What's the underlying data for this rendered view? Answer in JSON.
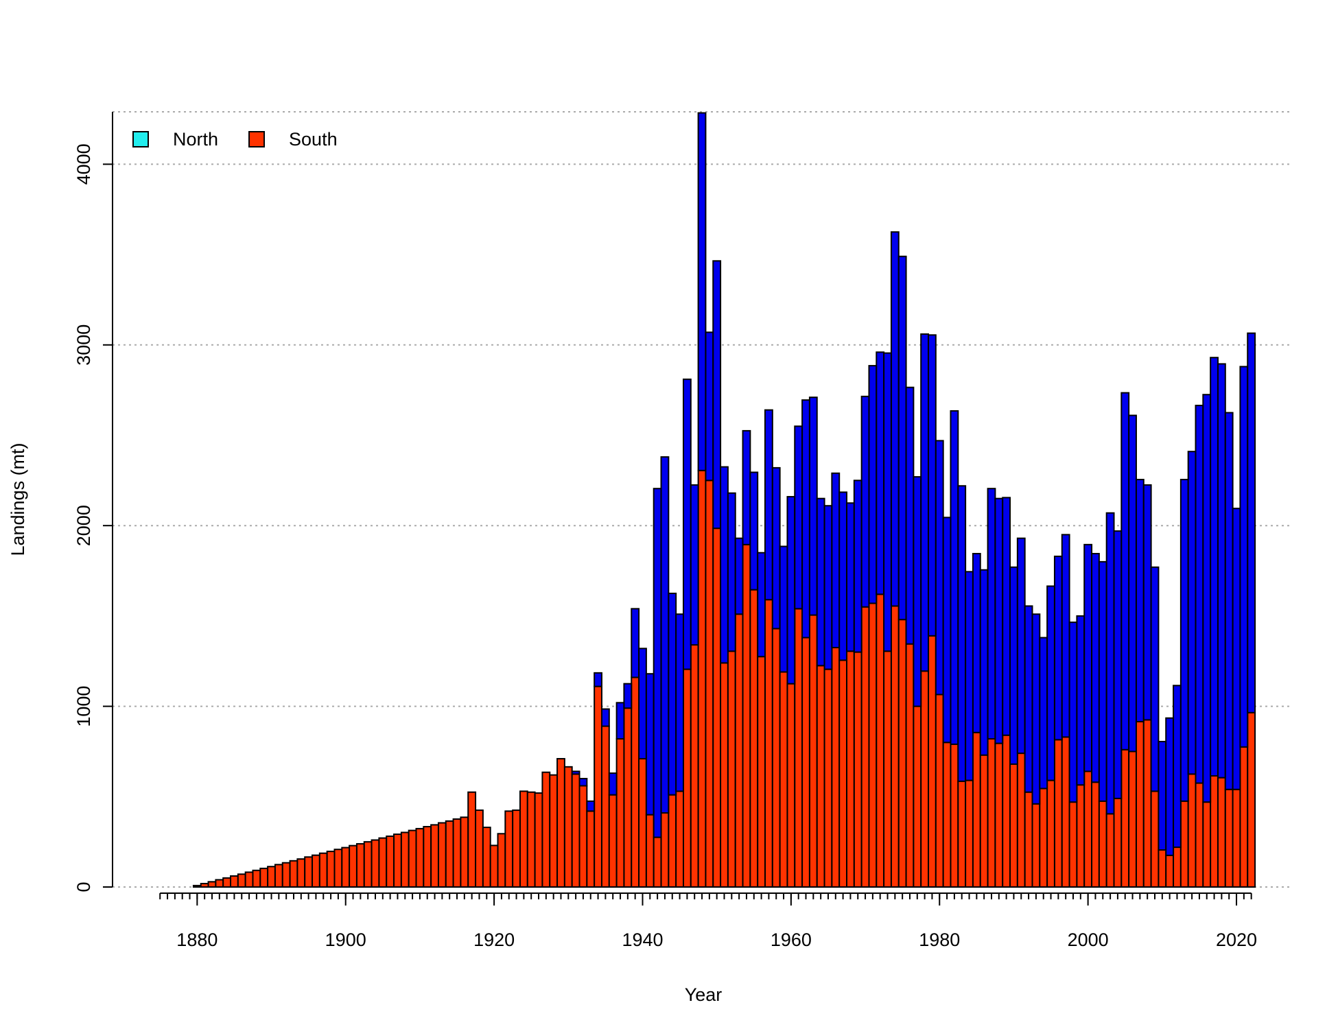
{
  "chart_data": {
    "type": "stacked-bar",
    "xlabel": "Year",
    "ylabel": "Landings (mt)",
    "x": [
      1875,
      1876,
      1877,
      1878,
      1879,
      1880,
      1881,
      1882,
      1883,
      1884,
      1885,
      1886,
      1887,
      1888,
      1889,
      1890,
      1891,
      1892,
      1893,
      1894,
      1895,
      1896,
      1897,
      1898,
      1899,
      1900,
      1901,
      1902,
      1903,
      1904,
      1905,
      1906,
      1907,
      1908,
      1909,
      1910,
      1911,
      1912,
      1913,
      1914,
      1915,
      1916,
      1917,
      1918,
      1919,
      1920,
      1921,
      1922,
      1923,
      1924,
      1925,
      1926,
      1927,
      1928,
      1929,
      1930,
      1931,
      1932,
      1933,
      1934,
      1935,
      1936,
      1937,
      1938,
      1939,
      1940,
      1941,
      1942,
      1943,
      1944,
      1945,
      1946,
      1947,
      1948,
      1949,
      1950,
      1951,
      1952,
      1953,
      1954,
      1955,
      1956,
      1957,
      1958,
      1959,
      1960,
      1961,
      1962,
      1963,
      1964,
      1965,
      1966,
      1967,
      1968,
      1969,
      1970,
      1971,
      1972,
      1973,
      1974,
      1975,
      1976,
      1977,
      1978,
      1979,
      1980,
      1981,
      1982,
      1983,
      1984,
      1985,
      1986,
      1987,
      1988,
      1989,
      1990,
      1991,
      1992,
      1993,
      1994,
      1995,
      1996,
      1997,
      1998,
      1999,
      2000,
      2001,
      2002,
      2003,
      2004,
      2005,
      2006,
      2007,
      2008,
      2009,
      2010,
      2011,
      2012,
      2013,
      2014,
      2015,
      2016,
      2017,
      2018,
      2019,
      2020,
      2021,
      2022
    ],
    "series": [
      {
        "name": "South",
        "color": "#ff3300",
        "legend_color": "#ff3300",
        "values": [
          0,
          0,
          0,
          0,
          0,
          8,
          19,
          29,
          40,
          50,
          61,
          71,
          82,
          92,
          103,
          113,
          124,
          134,
          145,
          155,
          166,
          176,
          187,
          197,
          208,
          218,
          229,
          239,
          250,
          260,
          271,
          281,
          292,
          302,
          313,
          323,
          334,
          344,
          355,
          365,
          376,
          386,
          525,
          425,
          330,
          230,
          295,
          420,
          425,
          530,
          525,
          520,
          635,
          620,
          710,
          665,
          625,
          560,
          420,
          1110,
          890,
          510,
          820,
          990,
          1160,
          710,
          400,
          275,
          410,
          510,
          530,
          1205,
          1340,
          2305,
          2250,
          1985,
          1240,
          1305,
          1510,
          1895,
          1645,
          1275,
          1590,
          1430,
          1190,
          1125,
          1540,
          1380,
          1505,
          1225,
          1205,
          1325,
          1255,
          1305,
          1300,
          1550,
          1570,
          1620,
          1305,
          1555,
          1480,
          1345,
          1000,
          1195,
          1390,
          1065,
          800,
          790,
          585,
          590,
          855,
          730,
          820,
          795,
          840,
          680,
          740,
          525,
          460,
          545,
          590,
          815,
          830,
          470,
          565,
          640,
          580,
          475,
          405,
          490,
          760,
          750,
          915,
          925,
          530,
          205,
          175,
          220,
          475,
          625,
          575,
          470,
          615,
          605,
          540,
          540,
          775,
          965
        ]
      },
      {
        "name": "North",
        "color": "#0000ee",
        "legend_color": "#22eeee",
        "values": [
          0,
          0,
          0,
          0,
          0,
          0,
          0,
          0,
          0,
          0,
          0,
          0,
          0,
          0,
          0,
          0,
          0,
          0,
          0,
          0,
          0,
          0,
          0,
          0,
          0,
          0,
          0,
          0,
          0,
          0,
          0,
          0,
          0,
          0,
          0,
          0,
          0,
          0,
          0,
          0,
          0,
          0,
          0,
          0,
          0,
          0,
          0,
          0,
          0,
          0,
          0,
          0,
          0,
          0,
          0,
          0,
          15,
          40,
          55,
          75,
          95,
          120,
          200,
          135,
          380,
          610,
          780,
          1930,
          1970,
          1115,
          980,
          1605,
          885,
          1979,
          820,
          1480,
          1085,
          875,
          420,
          630,
          650,
          575,
          1050,
          890,
          695,
          1035,
          1010,
          1315,
          1205,
          925,
          905,
          965,
          930,
          820,
          950,
          1165,
          1315,
          1340,
          1650,
          2070,
          2010,
          1420,
          1270,
          1865,
          1665,
          1405,
          1245,
          1845,
          1635,
          1155,
          990,
          1025,
          1385,
          1355,
          1315,
          1090,
          1190,
          1030,
          1050,
          835,
          1075,
          1015,
          1120,
          995,
          935,
          1255,
          1265,
          1325,
          1665,
          1480,
          1975,
          1860,
          1340,
          1300,
          1240,
          600,
          760,
          895,
          1780,
          1785,
          2090,
          2255,
          2315,
          2290,
          2085,
          1555,
          2105,
          2100
        ]
      }
    ],
    "legend_order": [
      "North",
      "South"
    ],
    "xlim": [
      1868.6,
      2027.3
    ],
    "xticks": [
      1880,
      1900,
      1920,
      1940,
      1960,
      1980,
      2000,
      2020
    ],
    "minor_ticks_at_x": true,
    "ylim": [
      0,
      4290
    ],
    "yticks": [
      0,
      1000,
      2000,
      3000,
      4000
    ],
    "grid": true,
    "legend": "top-left"
  }
}
